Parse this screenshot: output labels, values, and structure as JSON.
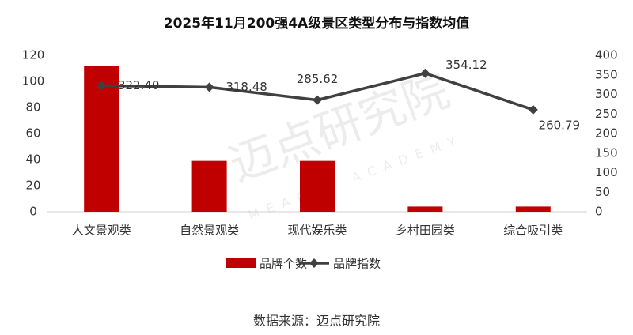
{
  "chart_data": {
    "type": "bar",
    "title": "2025年11月200强4A级景区类型分布与指数均值",
    "categories": [
      "人文景观类",
      "自然景观类",
      "现代娱乐类",
      "乡村田园类",
      "综合吸引类"
    ],
    "series": [
      {
        "name": "品牌个数",
        "color": "#c00000",
        "values": [
          112,
          39,
          39,
          4,
          4
        ]
      },
      {
        "name": "品牌指数",
        "color": "#404040",
        "type": "line",
        "axis": "y2",
        "values": [
          322.4,
          318.48,
          285.62,
          354.12,
          260.79
        ],
        "value_labels": [
          "322.40",
          "318.48",
          "285.62",
          "354.12",
          "260.79"
        ]
      }
    ],
    "ylim": [
      0,
      120
    ],
    "yticks": [
      0,
      20,
      40,
      60,
      80,
      100,
      120
    ],
    "y2lim": [
      0,
      400
    ],
    "y2ticks": [
      0,
      50,
      100,
      150,
      200,
      250,
      300,
      350,
      400
    ],
    "grid": false,
    "legend": "bottom",
    "source": "数据来源：迈点研究院",
    "watermark": "迈点研究院",
    "watermark_en": "MEADIN ACADEMY"
  }
}
